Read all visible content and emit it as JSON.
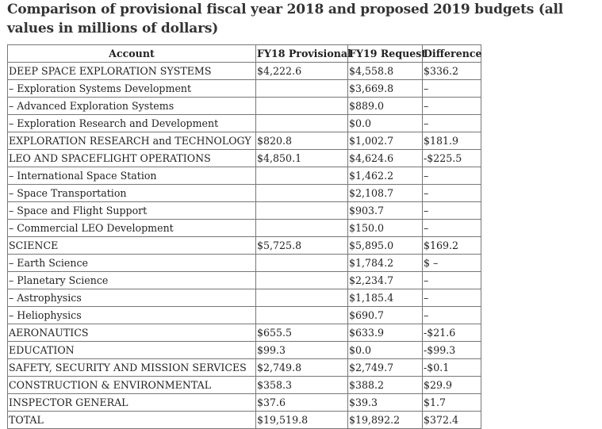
{
  "title": "Comparison of provisional fiscal year 2018 and proposed 2019 budgets (all values in millions of dollars)",
  "table": {
    "headers": [
      "Account",
      "FY18 Provisional",
      "FY19 Request",
      "Difference"
    ],
    "rows": [
      [
        "DEEP SPACE EXPLORATION SYSTEMS",
        "$4,222.6",
        "$4,558.8",
        "$336.2"
      ],
      [
        "– Exploration Systems Development",
        "",
        "$3,669.8",
        "–"
      ],
      [
        "– Advanced Exploration Systems",
        "",
        "$889.0",
        "–"
      ],
      [
        "– Exploration Research and Development",
        "",
        "$0.0",
        "–"
      ],
      [
        "EXPLORATION RESEARCH and TECHNOLOGY",
        "$820.8",
        "$1,002.7",
        "$181.9"
      ],
      [
        "LEO AND SPACEFLIGHT OPERATIONS",
        "$4,850.1",
        "$4,624.6",
        "-$225.5"
      ],
      [
        "– International Space Station",
        "",
        "$1,462.2",
        "–"
      ],
      [
        "– Space Transportation",
        "",
        "$2,108.7",
        "–"
      ],
      [
        "– Space and Flight Support",
        "",
        "$903.7",
        "–"
      ],
      [
        "– Commercial LEO Development",
        "",
        "$150.0",
        "–"
      ],
      [
        "SCIENCE",
        "$5,725.8",
        "$5,895.0",
        "$169.2"
      ],
      [
        "– Earth Science",
        "",
        "$1,784.2",
        "$ –"
      ],
      [
        "– Planetary Science",
        "",
        "$2,234.7",
        "–"
      ],
      [
        "– Astrophysics",
        "",
        "$1,185.4",
        "–"
      ],
      [
        "– Heliophysics",
        "",
        "$690.7",
        "–"
      ],
      [
        "AERONAUTICS",
        "$655.5",
        "$633.9",
        "-$21.6"
      ],
      [
        "EDUCATION",
        "$99.3",
        "$0.0",
        "-$99.3"
      ],
      [
        "SAFETY, SECURITY AND MISSION SERVICES",
        "$2,749.8",
        "$2,749.7",
        "-$0.1"
      ],
      [
        "CONSTRUCTION & ENVIRONMENTAL",
        "$358.3",
        "$388.2",
        "$29.9"
      ],
      [
        "INSPECTOR GENERAL",
        "$37.6",
        "$39.3",
        "$1.7"
      ],
      [
        "TOTAL",
        "$19,519.8",
        "$19,892.2",
        "$372.4"
      ]
    ]
  }
}
